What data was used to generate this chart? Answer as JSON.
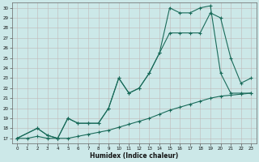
{
  "xlabel": "Humidex (Indice chaleur)",
  "bg_color": "#cce8e8",
  "grid_color": "#b0d0d0",
  "line_color": "#1a6b5a",
  "xlim": [
    -0.5,
    23.5
  ],
  "ylim": [
    16.5,
    30.5
  ],
  "xticks": [
    0,
    1,
    2,
    3,
    4,
    5,
    6,
    7,
    8,
    9,
    10,
    11,
    12,
    13,
    14,
    15,
    16,
    17,
    18,
    19,
    20,
    21,
    22,
    23
  ],
  "yticks": [
    17,
    18,
    19,
    20,
    21,
    22,
    23,
    24,
    25,
    26,
    27,
    28,
    29,
    30
  ],
  "line1_x": [
    0,
    1,
    2,
    3,
    4,
    5,
    6,
    7,
    8,
    9,
    10,
    11,
    12,
    13,
    14,
    15,
    16,
    17,
    18,
    19,
    20,
    21,
    22,
    23
  ],
  "line1_y": [
    17.0,
    17.0,
    17.2,
    17.0,
    17.0,
    17.0,
    17.2,
    17.4,
    17.6,
    17.8,
    18.1,
    18.4,
    18.7,
    19.0,
    19.4,
    19.8,
    20.1,
    20.4,
    20.7,
    21.0,
    21.2,
    21.3,
    21.4,
    21.5
  ],
  "line2_x": [
    0,
    2,
    3,
    4,
    5,
    6,
    7,
    8,
    9,
    10,
    11,
    12,
    13,
    14,
    15,
    16,
    17,
    18,
    19,
    20,
    21,
    22,
    23
  ],
  "line2_y": [
    17.0,
    18.0,
    17.3,
    17.0,
    19.0,
    18.5,
    18.5,
    18.5,
    20.0,
    23.0,
    21.5,
    22.0,
    23.5,
    25.5,
    27.5,
    27.5,
    27.5,
    27.5,
    29.5,
    29.0,
    25.0,
    22.5,
    23.0
  ],
  "line3_x": [
    0,
    2,
    3,
    4,
    5,
    6,
    7,
    8,
    9,
    10,
    11,
    12,
    13,
    14,
    15,
    16,
    17,
    18,
    19,
    20,
    21,
    22,
    23
  ],
  "line3_y": [
    17.0,
    18.0,
    17.3,
    17.0,
    19.0,
    18.5,
    18.5,
    18.5,
    20.0,
    23.0,
    21.5,
    22.0,
    23.5,
    25.5,
    30.0,
    29.5,
    29.5,
    30.0,
    30.2,
    23.5,
    21.5,
    21.5,
    21.5
  ]
}
